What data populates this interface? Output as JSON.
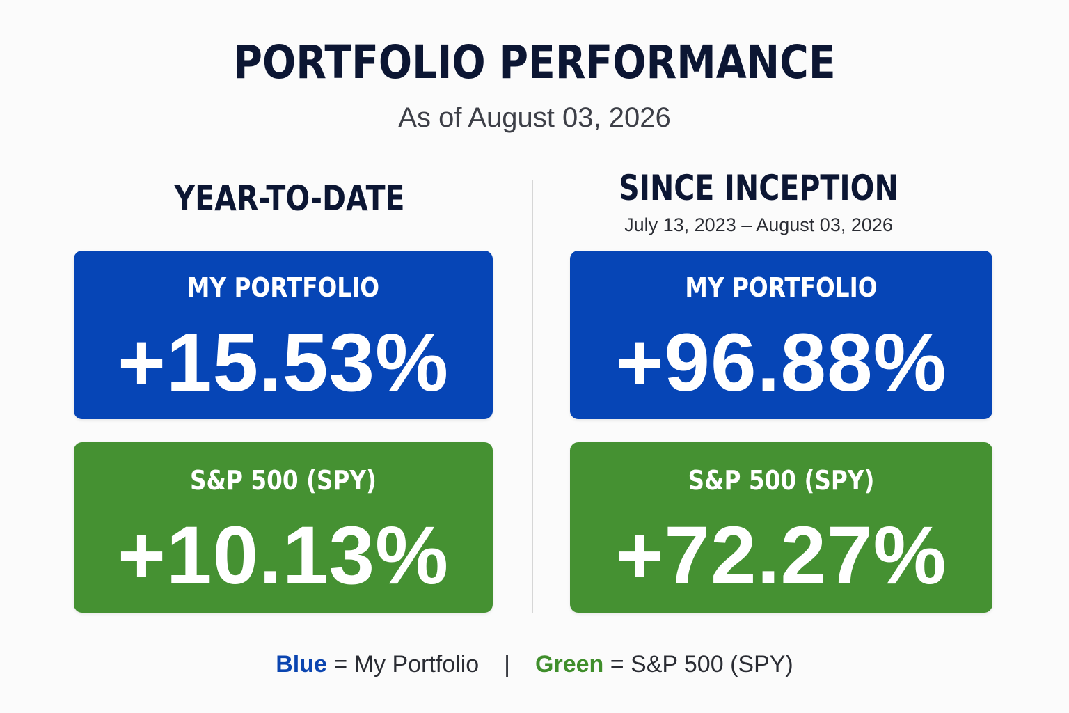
{
  "header": {
    "title": "PORTFOLIO PERFORMANCE",
    "subtitle": "As of August 03, 2026"
  },
  "sections": {
    "ytd": {
      "heading": "YEAR-TO-DATE",
      "portfolio": {
        "label": "MY PORTFOLIO",
        "value": "+15.53%"
      },
      "benchmark": {
        "label": "S&P 500 (SPY)",
        "value": "+10.13%"
      }
    },
    "since_inception": {
      "heading": "SINCE INCEPTION",
      "date_range": "July 13, 2023 – August 03, 2026",
      "portfolio": {
        "label": "MY PORTFOLIO",
        "value": "+96.88%"
      },
      "benchmark": {
        "label": "S&P 500 (SPY)",
        "value": "+72.27%"
      }
    }
  },
  "legend": {
    "blue_word": "Blue",
    "blue_text": " = My Portfolio",
    "separator": "|",
    "green_word": "Green",
    "green_text": " = S&P 500 (SPY)"
  },
  "colors": {
    "portfolio_blue": "#0645b6",
    "benchmark_green": "#459132",
    "title_navy": "#0c1633"
  }
}
